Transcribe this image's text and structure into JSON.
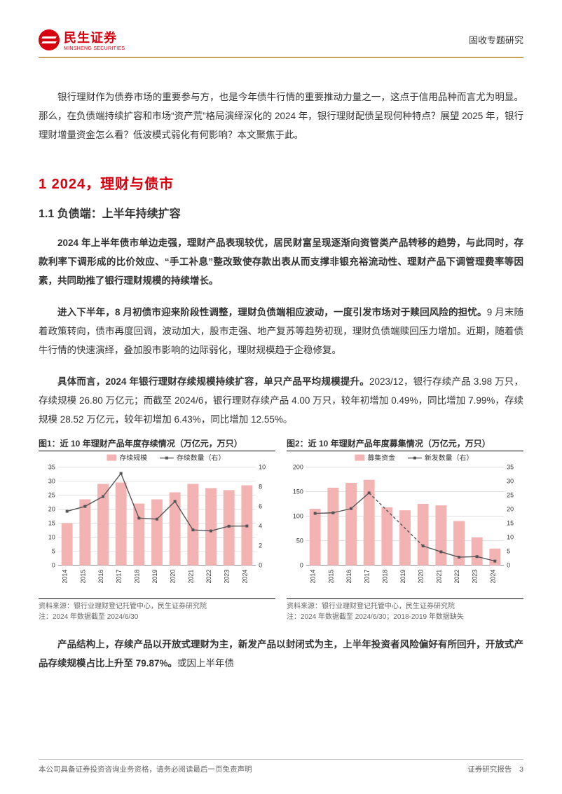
{
  "header": {
    "brand_cn": "民生证券",
    "brand_en": "MINSHENG SECURITIES",
    "right": "固收专题研究"
  },
  "intro": "银行理财作为债券市场的重要参与方，也是今年债牛行情的重要推动力量之一，这点于信用品种而言尤为明显。那么，在负债端持续扩容和市场“资产荒”格局演绎深化的 2024 年，银行理财配债呈现何种特点？展望 2025 年，银行理财增量资金怎么看？低波模式弱化有何影响？本文聚焦于此。",
  "h1": "1 2024，理财与债市",
  "h2": "1.1 负债端：上半年持续扩容",
  "p1_bold": "2024 年上半年债市单边走强，理财产品表现较优，居民财富呈现逐渐向资管类产品转移的趋势，与此同时，存款利率下调形成的比价效应、“手工补息”整改致使存款出表从而支撑非银充裕流动性、理财产品下调管理费率等因素，共同助推了银行理财规模的持续增长。",
  "p2_bold": "进入下半年，8 月初债市迎来阶段性调整，理财负债端相应波动，一度引发市场对于赎回风险的担忧。",
  "p2_rest": "9 月末随着政策转向，债市再度回调，波动加大，股市走强、地产复苏等趋势初现，理财负债端赎回压力增加。近期，随着债牛行情的快速演绎，叠加股市影响的边际弱化，理财规模趋于企稳修复。",
  "p3_bold": "具体而言，2024 年银行理财存续规模持续扩容，单只产品平均规模提升。",
  "p3_rest": "2023/12，银行存续产品 3.98 万只，存续规模 26.80 万亿元；而截至 2024/6，银行理财存续产品 4.00 万只，较年初增加 0.49%，同比增加 7.99%，存续规模 28.52 万亿元，较年初增加 6.43%，同比增加 12.55%。",
  "p4_bold": "产品结构上，存续产品以开放式理财为主，新发产品以封闭式为主，上半年投资者风险偏好有所回升，开放式产品存续规模占比上升至 79.87%。",
  "p4_rest": "或因上半年债",
  "chart1": {
    "title": "图1：近 10 年理财产品年度存续情况（万亿元，万只）",
    "type": "bar_line",
    "categories": [
      "2014",
      "2015",
      "2016",
      "2017",
      "2018",
      "2019",
      "2020",
      "2021",
      "2022",
      "2023",
      "2024"
    ],
    "bar_values": [
      15,
      23.5,
      29,
      29.5,
      22,
      23.5,
      26,
      29,
      27.5,
      26.8,
      28.5
    ],
    "bar_label": "存续规模",
    "bar_color": "#f4b3b3",
    "line_values": [
      5.5,
      6.0,
      7.0,
      9.35,
      4.8,
      4.7,
      6.5,
      3.6,
      3.5,
      3.98,
      4.0
    ],
    "line_label": "存续数量（右）",
    "line_color": "#555555",
    "y_left": {
      "min": 0,
      "max": 35,
      "step": 5
    },
    "y_right": {
      "min": 0,
      "max": 10,
      "step": 2
    },
    "grid_color": "#cccccc",
    "axis_fontsize": 9,
    "legend_fontsize": 10,
    "plot_bg": "#ffffff",
    "source": "资料来源：银行业理财登记托管中心，民生证券研究院",
    "note": "注：2024 年数据截至 2024/6/30"
  },
  "chart2": {
    "title": "图2：近 10 年理财产品年度募集情况（万亿元，万只）",
    "type": "bar_line_dashed",
    "categories": [
      "2014",
      "2015",
      "2016",
      "2017",
      "2018",
      "2019",
      "2020",
      "2021",
      "2022",
      "2023",
      "2024"
    ],
    "bar_values": [
      115,
      158,
      168,
      174,
      118,
      112,
      125,
      122,
      90,
      57,
      34
    ],
    "bar_label": "募集资金",
    "bar_color": "#f4b3b3",
    "line_values": [
      18.5,
      18.7,
      20.2,
      25.8,
      null,
      null,
      6.9,
      4.8,
      2.9,
      3.1,
      1.5
    ],
    "line_label": "新发数量（右）",
    "line_color": "#555555",
    "dashed_segment": {
      "from": 3,
      "to": 6
    },
    "y_left": {
      "min": 0,
      "max": 200,
      "step": 50
    },
    "y_right": {
      "min": 0,
      "max": 35,
      "step": 5
    },
    "grid_color": "#cccccc",
    "axis_fontsize": 9,
    "legend_fontsize": 10,
    "plot_bg": "#ffffff",
    "source": "资料来源：银行业理财登记托管中心，民生证券研究院",
    "note": "注：2024 年数据截至 2024/6/30；2018-2019 年数据缺失"
  },
  "footer": {
    "left": "本公司具备证券投资咨询业务资格，请务必阅读最后一页免责声明",
    "right": "证券研究报告",
    "page": "3"
  },
  "colors": {
    "brand_red": "#d7000f",
    "accent_gold": "#c7a05a",
    "text": "#333333",
    "muted": "#666666"
  }
}
